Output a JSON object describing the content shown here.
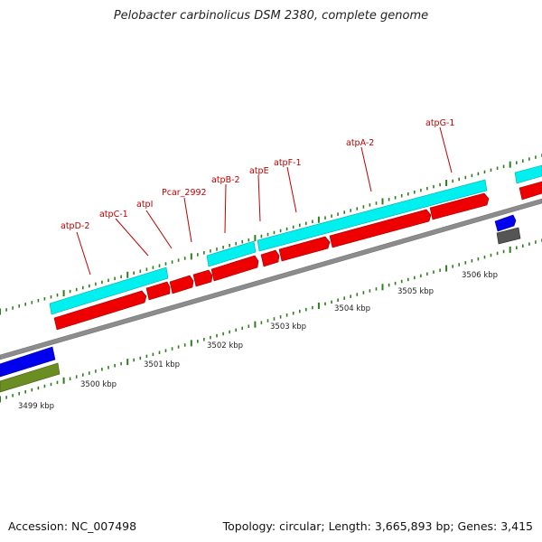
{
  "title": "Pelobacter carbinolicus DSM 2380, complete genome",
  "footer": {
    "accession": "Accession: NC_007498",
    "stats": "Topology: circular; Length: 3,665,893 bp; Genes: 3,415"
  },
  "colors": {
    "gene_red": "#ee0000",
    "cds_cyan": "#00f0f0",
    "strand_blue": "#0000ee",
    "strand_olive": "#6b8e23",
    "strand_gray": "#555555",
    "backbone": "#888888",
    "tick_green": "#2e7d1e",
    "label_red": "#c00000"
  },
  "gene_labels": [
    {
      "name": "atpD-2"
    },
    {
      "name": "atpC-1"
    },
    {
      "name": "atpI"
    },
    {
      "name": "Pcar_2992"
    },
    {
      "name": "atpB-2"
    },
    {
      "name": "atpE"
    },
    {
      "name": "atpF-1"
    },
    {
      "name": "atpA-2"
    },
    {
      "name": "atpG-1"
    }
  ],
  "kbp_labels": [
    "3499 kbp",
    "3500 kbp",
    "3501 kbp",
    "3502 kbp",
    "3503 kbp",
    "3504 kbp",
    "3505 kbp",
    "3506 kbp"
  ]
}
